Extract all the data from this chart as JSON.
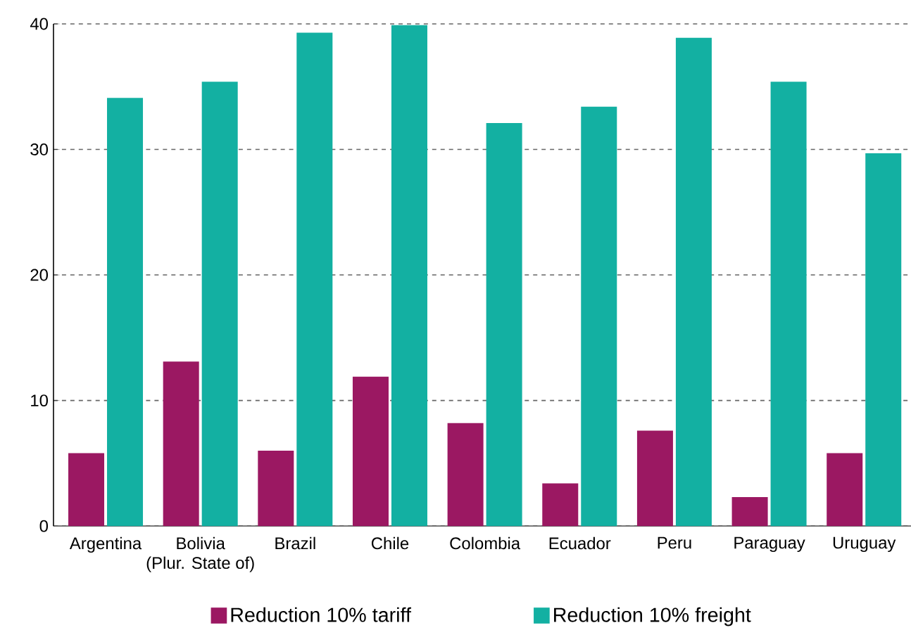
{
  "chart_data": {
    "type": "bar",
    "categories": [
      "Argentina",
      "Bolivia\n(Plur. State of)",
      "Brazil",
      "Chile",
      "Colombia",
      "Ecuador",
      "Peru",
      "Paraguay",
      "Uruguay"
    ],
    "series": [
      {
        "name": "Reduction 10% tariff",
        "color": "#9b1862",
        "values": [
          5.8,
          13.1,
          6.0,
          11.9,
          8.2,
          3.4,
          7.6,
          2.3,
          5.8
        ]
      },
      {
        "name": "Reduction 10% freight",
        "color": "#13b0a2",
        "values": [
          34.1,
          35.4,
          39.3,
          39.9,
          32.1,
          33.4,
          38.9,
          35.4,
          29.7
        ]
      }
    ],
    "ylim": [
      0,
      40
    ],
    "yticks": [
      0,
      10,
      20,
      30,
      40
    ],
    "grid": "y",
    "legend": "bottom"
  }
}
